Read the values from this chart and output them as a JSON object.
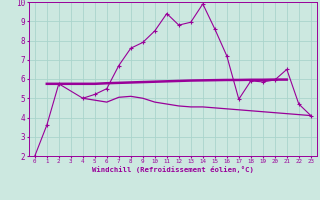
{
  "xlabel": "Windchill (Refroidissement éolien,°C)",
  "background_color": "#cce8e0",
  "line_color": "#990099",
  "xlim": [
    -0.5,
    23.5
  ],
  "ylim": [
    2,
    10
  ],
  "xticks": [
    0,
    1,
    2,
    3,
    4,
    5,
    6,
    7,
    8,
    9,
    10,
    11,
    12,
    13,
    14,
    15,
    16,
    17,
    18,
    19,
    20,
    21,
    22,
    23
  ],
  "yticks": [
    2,
    3,
    4,
    5,
    6,
    7,
    8,
    9,
    10
  ],
  "grid_color": "#aad4cc",
  "line1_x": [
    0,
    1,
    2,
    4,
    5,
    6,
    7,
    8,
    9,
    10,
    11,
    12,
    13,
    14,
    15,
    16,
    17,
    18,
    19,
    20,
    21,
    22,
    23
  ],
  "line1_y": [
    2.0,
    3.6,
    5.75,
    5.0,
    5.2,
    5.5,
    6.7,
    7.6,
    7.9,
    8.5,
    9.4,
    8.8,
    8.95,
    9.9,
    8.6,
    7.2,
    4.95,
    5.9,
    5.85,
    5.95,
    6.5,
    4.7,
    4.1
  ],
  "line2_x": [
    1,
    2,
    4,
    5,
    6,
    7,
    8,
    9,
    10,
    11,
    12,
    13,
    14,
    15,
    16,
    17,
    18,
    19,
    20,
    21
  ],
  "line2_y": [
    5.75,
    5.75,
    5.75,
    5.75,
    5.78,
    5.8,
    5.82,
    5.84,
    5.86,
    5.88,
    5.9,
    5.92,
    5.93,
    5.94,
    5.95,
    5.95,
    5.96,
    5.96,
    5.97,
    5.97
  ],
  "line3_x": [
    4,
    5,
    6,
    7,
    8,
    9,
    10,
    11,
    12,
    13,
    14,
    15,
    16,
    17,
    18,
    19,
    20,
    21,
    22,
    23
  ],
  "line3_y": [
    5.0,
    4.9,
    4.8,
    5.05,
    5.1,
    5.0,
    4.8,
    4.7,
    4.6,
    4.55,
    4.55,
    4.5,
    4.45,
    4.4,
    4.35,
    4.3,
    4.25,
    4.2,
    4.15,
    4.1
  ]
}
